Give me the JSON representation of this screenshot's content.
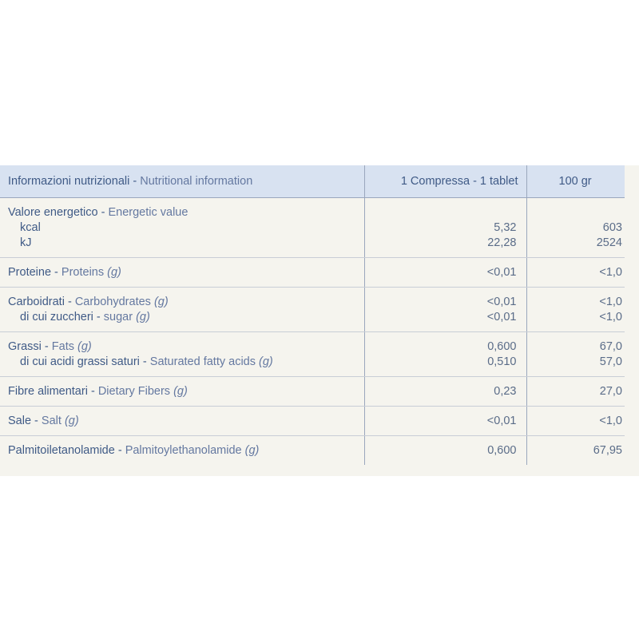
{
  "header": {
    "label_it": "Informazioni nutrizionali",
    "separator": " - ",
    "label_en": "Nutritional information",
    "col_serving": "1 Compressa - 1 tablet",
    "col_100": "100 gr"
  },
  "rows": [
    {
      "lines": [
        {
          "it": "Valore energetico",
          "en": "Energetic value",
          "unit": "",
          "serving": "",
          "per100": "",
          "indent": false
        },
        {
          "it": "kcal",
          "en": "",
          "unit": "",
          "serving": "5,32",
          "per100": "603",
          "indent": true
        },
        {
          "it": "kJ",
          "en": "",
          "unit": "",
          "serving": "22,28",
          "per100": "2524",
          "indent": true
        }
      ]
    },
    {
      "lines": [
        {
          "it": "Proteine",
          "en": "Proteins",
          "unit": "(g)",
          "serving": "<0,01",
          "per100": "<1,0",
          "indent": false
        }
      ]
    },
    {
      "lines": [
        {
          "it": "Carboidrati",
          "en": "Carbohydrates",
          "unit": "(g)",
          "serving": "<0,01",
          "per100": "<1,0",
          "indent": false
        },
        {
          "it": "di cui zuccheri",
          "en": "sugar",
          "unit": "(g)",
          "serving": "<0,01",
          "per100": "<1,0",
          "indent": true
        }
      ]
    },
    {
      "lines": [
        {
          "it": "Grassi",
          "en": "Fats",
          "unit": "(g)",
          "serving": "0,600",
          "per100": "67,0",
          "indent": false
        },
        {
          "it": "di cui acidi grassi saturi",
          "en": "Saturated fatty acids",
          "unit": "(g)",
          "serving": "0,510",
          "per100": "57,0",
          "indent": true
        }
      ]
    },
    {
      "lines": [
        {
          "it": "Fibre alimentari",
          "en": "Dietary Fibers",
          "unit": "(g)",
          "serving": "0,23",
          "per100": "27,0",
          "indent": false
        }
      ]
    },
    {
      "lines": [
        {
          "it": "Sale",
          "en": "Salt",
          "unit": "(g)",
          "serving": "<0,01",
          "per100": "<1,0",
          "indent": false
        }
      ]
    },
    {
      "lines": [
        {
          "it": "Palmitoiletanolamide",
          "en": "Palmitoylethanolamide",
          "unit": "(g)",
          "serving": "0,600",
          "per100": "67,95",
          "indent": false
        }
      ]
    }
  ],
  "colors": {
    "text": "#3f5a86",
    "header_bg": "#d8e2f1",
    "panel_bg": "#f5f4ee"
  }
}
